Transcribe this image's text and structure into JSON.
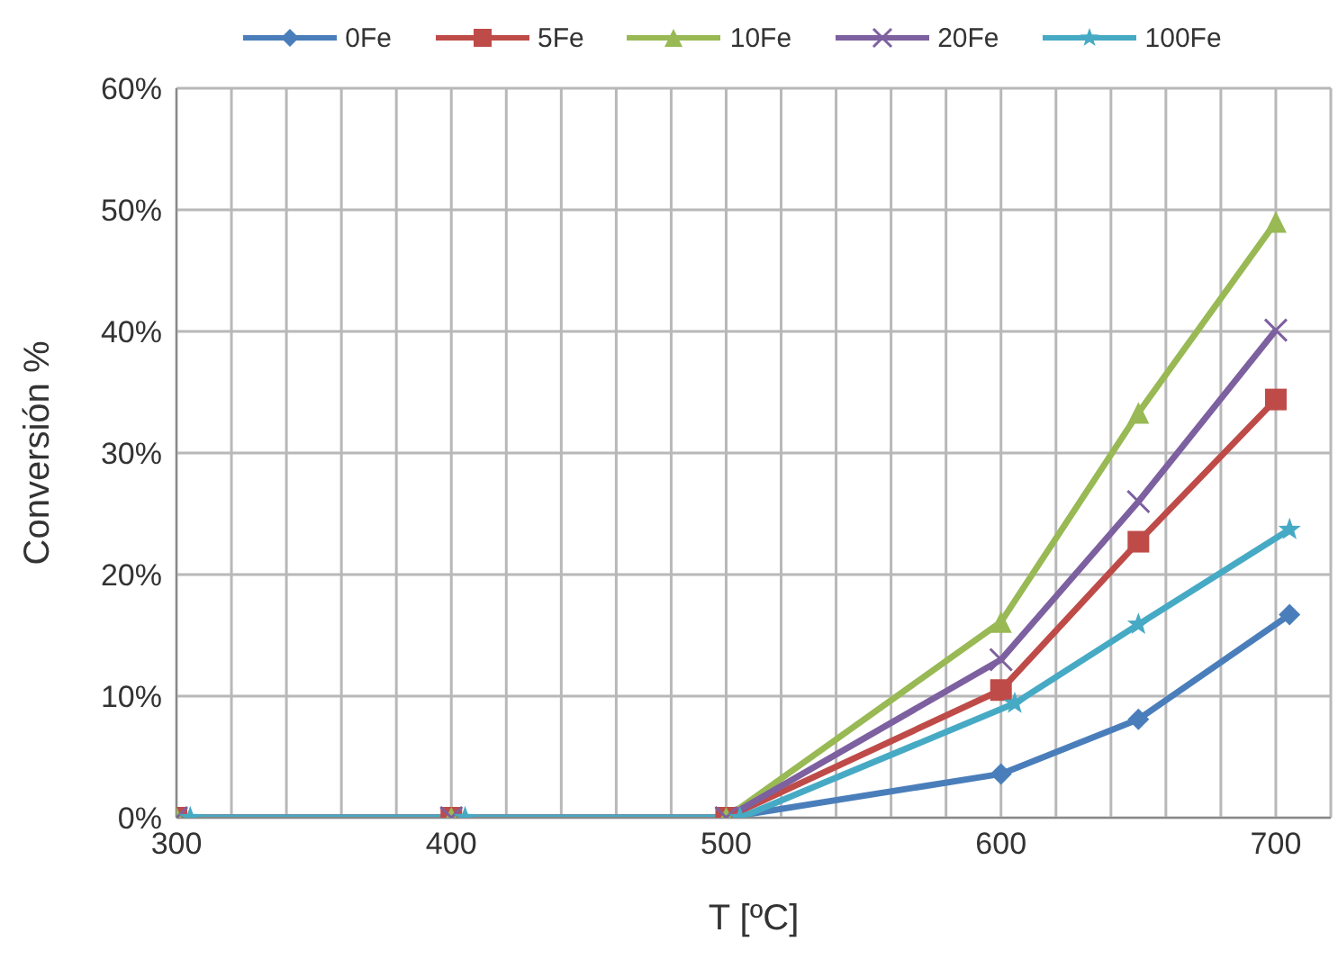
{
  "chart_data": {
    "type": "line",
    "xlabel": "T [ºC]",
    "ylabel": "Conversión %",
    "x": [
      300,
      400,
      500,
      600,
      650,
      700
    ],
    "series": [
      {
        "name": "0Fe",
        "color": "#4a7ebb",
        "marker": "diamond",
        "x": [
          300,
          400,
          500,
          600,
          650,
          705
        ],
        "values": [
          0,
          0,
          0,
          3.6,
          8.1,
          16.7
        ]
      },
      {
        "name": "5Fe",
        "color": "#be4b48",
        "marker": "square",
        "values": [
          0,
          0,
          0,
          10.5,
          22.7,
          34.4
        ]
      },
      {
        "name": "10Fe",
        "color": "#98b954",
        "marker": "triangle",
        "values": [
          0,
          0,
          0,
          16.1,
          33.3,
          49.0
        ]
      },
      {
        "name": "20Fe",
        "color": "#7d60a0",
        "marker": "cross",
        "values": [
          0,
          0,
          0,
          13.0,
          26.0,
          40.1
        ]
      },
      {
        "name": "100Fe",
        "color": "#46aac5",
        "marker": "star",
        "x": [
          305,
          405,
          505,
          605,
          650,
          705
        ],
        "values": [
          0,
          0,
          0,
          9.4,
          15.9,
          23.7
        ]
      }
    ],
    "xlim": [
      300,
      720
    ],
    "xticks": [
      300,
      {
        "value": 320,
        "label": null
      },
      {
        "value": 340,
        "label": null
      },
      {
        "value": 360,
        "label": null
      },
      {
        "value": 380,
        "label": null
      },
      400,
      {
        "value": 420,
        "label": null
      },
      {
        "value": 440,
        "label": null
      },
      {
        "value": 460,
        "label": null
      },
      {
        "value": 480,
        "label": null
      },
      500,
      {
        "value": 520,
        "label": null
      },
      {
        "value": 540,
        "label": null
      },
      {
        "value": 560,
        "label": null
      },
      {
        "value": 580,
        "label": null
      },
      600,
      {
        "value": 620,
        "label": null
      },
      {
        "value": 640,
        "label": null
      },
      {
        "value": 660,
        "label": null
      },
      {
        "value": 680,
        "label": null
      },
      700,
      {
        "value": 720,
        "label": null
      }
    ],
    "ylim": [
      0,
      60
    ],
    "yticks": [
      {
        "value": 0,
        "label": "0%"
      },
      {
        "value": 10,
        "label": "10%"
      },
      {
        "value": 20,
        "label": "20%"
      },
      {
        "value": 30,
        "label": "30%"
      },
      {
        "value": 40,
        "label": "40%"
      },
      {
        "value": 50,
        "label": "50%"
      },
      {
        "value": 60,
        "label": "60%"
      }
    ],
    "grid": true,
    "legend": "top",
    "line_style": "solid"
  }
}
